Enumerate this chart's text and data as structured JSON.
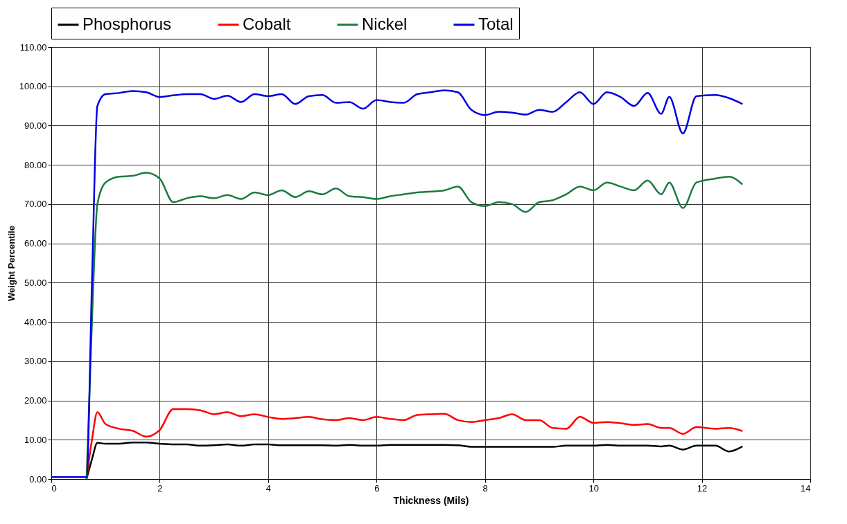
{
  "chart_data": {
    "type": "line",
    "xlabel": "Thickness (Mils)",
    "ylabel": "Weight Percentile",
    "x": [
      0,
      0.5,
      0.65,
      0.75,
      0.85,
      1.0,
      1.25,
      1.5,
      1.75,
      2.0,
      2.25,
      2.5,
      2.75,
      3.0,
      3.25,
      3.5,
      3.75,
      4.0,
      4.25,
      4.5,
      4.75,
      5.0,
      5.25,
      5.5,
      5.75,
      6.0,
      6.25,
      6.5,
      6.75,
      7.0,
      7.25,
      7.5,
      7.75,
      8.0,
      8.25,
      8.5,
      8.75,
      9.0,
      9.25,
      9.5,
      9.75,
      10.0,
      10.25,
      10.5,
      10.75,
      11.0,
      11.25,
      11.4,
      11.65,
      11.9,
      12.25,
      12.5,
      12.75
    ],
    "series": [
      {
        "name": "Phosphorus",
        "color": "#000000",
        "values": [
          null,
          null,
          0,
          5,
          9.2,
          9,
          9,
          9.3,
          9.3,
          9,
          8.8,
          8.8,
          8.5,
          8.6,
          8.8,
          8.5,
          8.8,
          8.8,
          8.6,
          8.6,
          8.6,
          8.6,
          8.5,
          8.7,
          8.5,
          8.5,
          8.7,
          8.7,
          8.7,
          8.7,
          8.7,
          8.6,
          8.2,
          8.2,
          8.2,
          8.2,
          8.2,
          8.2,
          8.2,
          8.5,
          8.5,
          8.5,
          8.7,
          8.5,
          8.5,
          8.5,
          8.3,
          8.5,
          7.5,
          8.5,
          8.5,
          7,
          8.3
        ]
      },
      {
        "name": "Cobalt",
        "color": "#ff0000",
        "values": [
          null,
          null,
          0,
          10,
          17,
          14,
          12.8,
          12.3,
          10.8,
          12.5,
          17.8,
          17.8,
          17.5,
          16.5,
          17,
          16,
          16.5,
          15.8,
          15.3,
          15.5,
          15.8,
          15.2,
          15,
          15.5,
          15,
          15.8,
          15.3,
          15,
          16.3,
          16.5,
          16.6,
          15,
          14.5,
          15,
          15.5,
          16.5,
          15,
          15,
          13,
          12.8,
          15.8,
          14.3,
          14.5,
          14.2,
          13.8,
          14,
          13,
          13,
          11.5,
          13.2,
          12.8,
          13,
          12.2
        ]
      },
      {
        "name": "Nickel",
        "color": "#1a7a40",
        "values": [
          null,
          null,
          0,
          40,
          70,
          75.5,
          77,
          77.2,
          78,
          76.5,
          70.5,
          71.5,
          72,
          71.5,
          72.3,
          71.3,
          73,
          72.3,
          73.5,
          71.8,
          73.3,
          72.5,
          74,
          72,
          71.8,
          71.3,
          72,
          72.5,
          73,
          73.2,
          73.5,
          74.5,
          70.5,
          69.5,
          70.5,
          70,
          68,
          70.5,
          71,
          72.5,
          74.5,
          73.5,
          75.5,
          74.5,
          73.5,
          76,
          72.5,
          75.5,
          69,
          75.5,
          76.5,
          77,
          75
        ]
      },
      {
        "name": "Total",
        "color": "#0000e0",
        "values": [
          0.5,
          0.5,
          0.5,
          50,
          95,
          98,
          98.3,
          98.8,
          98.5,
          97.3,
          97.7,
          98,
          98,
          96.8,
          97.6,
          96,
          98,
          97.5,
          98,
          95.5,
          97.5,
          97.8,
          95.8,
          96,
          94.3,
          96.5,
          96,
          95.8,
          98,
          98.5,
          99,
          98.5,
          94,
          92.7,
          93.5,
          93.3,
          92.8,
          94,
          93.5,
          96,
          98.5,
          95.5,
          98.5,
          97.3,
          95,
          98.3,
          93,
          97.3,
          88,
          97.5,
          97.8,
          97,
          95.5
        ]
      }
    ],
    "xlim": [
      0,
      14
    ],
    "xticks": [
      0,
      2,
      4,
      6,
      8,
      10,
      12,
      14
    ],
    "ylim": [
      0,
      110
    ],
    "yticks": [
      {
        "value": 0,
        "label": "0.00"
      },
      {
        "value": 10,
        "label": "10.00"
      },
      {
        "value": 20,
        "label": "20.00"
      },
      {
        "value": 30,
        "label": "30.00"
      },
      {
        "value": 40,
        "label": "40.00"
      },
      {
        "value": 50,
        "label": "50.00"
      },
      {
        "value": 60,
        "label": "60.00"
      },
      {
        "value": 70,
        "label": "70.00"
      },
      {
        "value": 80,
        "label": "80.00"
      },
      {
        "value": 90,
        "label": "90.00"
      },
      {
        "value": 100,
        "label": "100.00"
      },
      {
        "value": 110,
        "label": "110.00"
      }
    ],
    "grid": true,
    "legend": "top",
    "marker": "none",
    "line_style": "solid"
  }
}
